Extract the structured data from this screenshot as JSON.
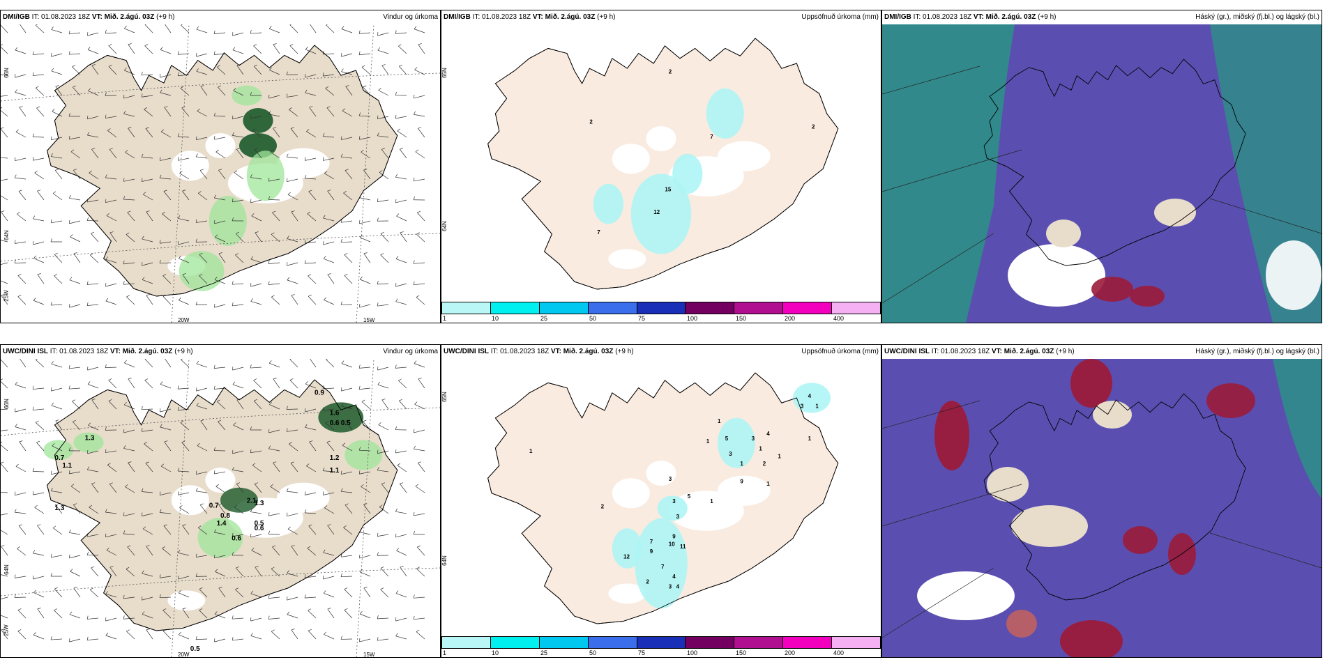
{
  "colors": {
    "land": "#e8dccb",
    "land_light": "#f9ebe0",
    "sea": "#ffffff",
    "green": "#9fe59a",
    "darkgreen": "#1c5a2a",
    "cyan": "#aef5f5",
    "hasky": "#5a4fb0",
    "teal": "#2d8f87",
    "red": "#9b1b3b"
  },
  "colorbar": {
    "colors": [
      "#b9f6f6",
      "#00f0f0",
      "#00c8ef",
      "#3b6eea",
      "#1a2fb8",
      "#730060",
      "#b0108f",
      "#f200bd",
      "#f4b0f2"
    ],
    "ticks": [
      "1",
      "10",
      "25",
      "50",
      "75",
      "100",
      "150",
      "200",
      "400"
    ]
  },
  "panels": [
    {
      "id": "p1",
      "title_model": "DMI/IGB",
      "title_it": " IT: 01.08.2023 18Z ",
      "title_vt_label": "VT:",
      "title_vt": " Mið. 2.ágú. 03Z",
      "title_lead": " (+9 h)",
      "title_right": "Vindur og úrkoma",
      "axis": {
        "lat": [
          "66N",
          "64N",
          "25W"
        ],
        "lon": [
          "20W",
          "15W"
        ]
      },
      "labels": []
    },
    {
      "id": "p2",
      "title_model": "DMI/IGB",
      "title_it": " IT: 01.08.2023 18Z ",
      "title_vt_label": "VT:",
      "title_vt": " Mið. 2.ágú. 03Z",
      "title_lead": " (+9 h)",
      "title_right": "Uppsöfnuð úrkoma (mm)",
      "axis": {
        "lat": [
          "65N",
          "64N"
        ],
        "lon": []
      },
      "labels": [
        "2",
        "2",
        "2",
        "7",
        "15",
        "12",
        "7"
      ]
    },
    {
      "id": "p3",
      "title_model": "DMI/IGB",
      "title_it": " IT: 01.08.2023 18Z ",
      "title_vt_label": "VT:",
      "title_vt": " Mið. 2.ágú. 03Z",
      "title_lead": " (+9 h)",
      "title_right": "Háský (gr.), miðský (fj.bl.) og lágský (bl.)",
      "axis": {
        "lat": [],
        "lon": []
      },
      "labels": []
    },
    {
      "id": "p4",
      "title_model": "UWC/DINI ISL",
      "title_it": " IT: 01.08.2023 18Z ",
      "title_vt_label": "VT:",
      "title_vt": " Mið. 2.ágú. 03Z",
      "title_lead": " (+9 h)",
      "title_right": "Vindur og úrkoma",
      "axis": {
        "lat": [
          "66N",
          "64N",
          "25W"
        ],
        "lon": [
          "20W",
          "15W"
        ]
      },
      "labels": [
        "0.9",
        "1.6",
        "0.6",
        "0.5",
        "1.3",
        "0.7",
        "1.1",
        "1.2",
        "1.1",
        "1.3",
        "0.7",
        "0.8",
        "2.1",
        "1.3",
        "1.4",
        "0.5",
        "0.6",
        "0.6",
        "0.5"
      ]
    },
    {
      "id": "p5",
      "title_model": "UWC/DINI ISL",
      "title_it": " IT: 01.08.2023 18Z ",
      "title_vt_label": "VT:",
      "title_vt": " Mið. 2.ágú. 03Z",
      "title_lead": " (+9 h)",
      "title_right": "Uppsöfnuð úrkoma (mm)",
      "axis": {
        "lat": [
          "65N",
          "64N"
        ],
        "lon": []
      },
      "labels": [
        "1",
        "4",
        "3",
        "1",
        "1",
        "5",
        "3",
        "4",
        "1",
        "1",
        "3",
        "1",
        "2",
        "1",
        "1",
        "9",
        "3",
        "3",
        "5",
        "1",
        "3",
        "7",
        "9",
        "10",
        "11",
        "12",
        "9",
        "7",
        "4",
        "3",
        "4",
        "2",
        "2",
        "1"
      ]
    },
    {
      "id": "p6",
      "title_model": "UWC/DINI ISL",
      "title_it": " IT: 01.08.2023 18Z ",
      "title_vt_label": "VT:",
      "title_vt": " Mið. 2.ágú. 03Z",
      "title_lead": " (+9 h)",
      "title_right": "Háský (gr.), miðský (fj.bl.) og lágský (bl.)",
      "axis": {
        "lat": [],
        "lon": []
      },
      "labels": []
    }
  ]
}
